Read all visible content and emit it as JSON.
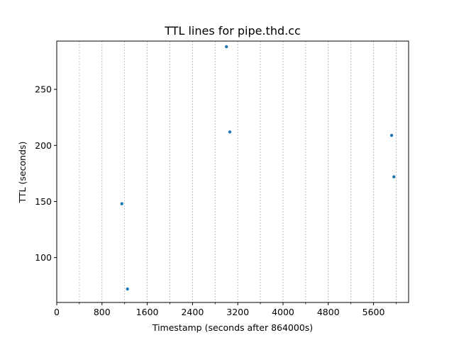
{
  "chart_data": {
    "type": "scatter",
    "title": "TTL lines for pipe.thd.cc",
    "xlabel": "Timestamp (seconds after 864000s)",
    "ylabel": "TTL (seconds)",
    "xlim": [
      0,
      6220
    ],
    "ylim": [
      60,
      293
    ],
    "x_ticks": [
      0,
      800,
      1600,
      2400,
      3200,
      4000,
      4800,
      5600
    ],
    "x_tick_labels": [
      "0",
      "800",
      "1600",
      "2400",
      "3200",
      "4000",
      "4800",
      "5600"
    ],
    "x_minor_ticks": [
      400,
      1200,
      2000,
      2800,
      3600,
      4400,
      5200,
      6000
    ],
    "y_ticks": [
      100,
      150,
      200,
      250
    ],
    "y_tick_labels": [
      "100",
      "150",
      "200",
      "250"
    ],
    "grid": "vertical dashed at major and minor x ticks",
    "point_color": "#1f77b4",
    "series": [
      {
        "points": [
          {
            "x": 1150,
            "y": 148
          },
          {
            "x": 1250,
            "y": 72
          },
          {
            "x": 3000,
            "y": 288
          },
          {
            "x": 3060,
            "y": 212
          },
          {
            "x": 5920,
            "y": 209
          },
          {
            "x": 5960,
            "y": 172
          }
        ]
      }
    ]
  }
}
